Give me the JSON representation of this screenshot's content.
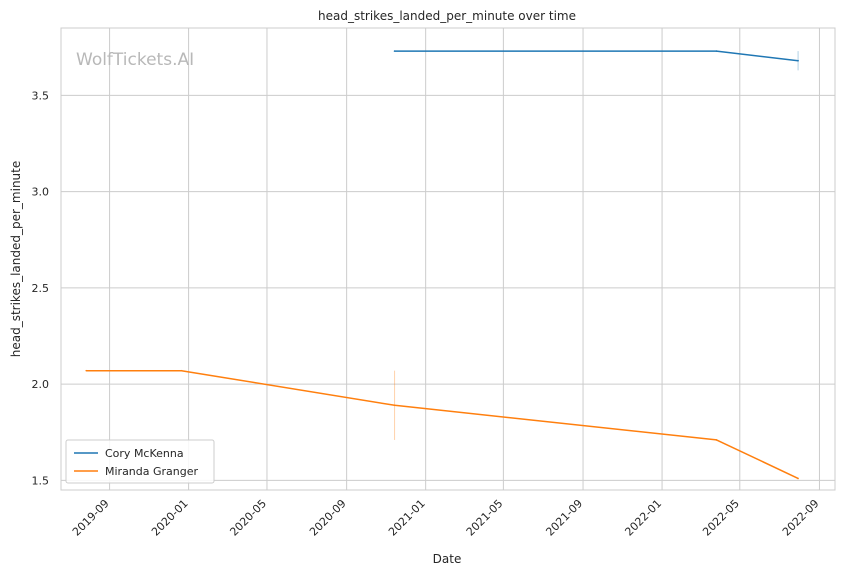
{
  "chart_data": {
    "type": "line",
    "title": "head_strikes_landed_per_minute over time",
    "xlabel": "Date",
    "ylabel": "head_strikes_landed_per_minute",
    "watermark": "WolfTickets.AI",
    "x_ticks": [
      "2019-09",
      "2020-01",
      "2020-05",
      "2020-09",
      "2021-01",
      "2021-05",
      "2021-09",
      "2022-01",
      "2022-05",
      "2022-09"
    ],
    "y_ticks": [
      "1.5",
      "2.0",
      "2.5",
      "3.0",
      "3.5"
    ],
    "ylim": [
      1.45,
      3.85
    ],
    "xlim": [
      "2019-06-18",
      "2022-09-25"
    ],
    "grid": true,
    "legend_position": "lower-left",
    "series": [
      {
        "name": "Cory McKenna",
        "color": "#1f77b4",
        "points": [
          {
            "x": "2020-11-14",
            "y": 3.73
          },
          {
            "x": "2022-03-26",
            "y": 3.73
          },
          {
            "x": "2022-07-30",
            "y": 3.68
          }
        ],
        "error_bars": [
          {
            "x": "2022-07-30",
            "low": 3.63,
            "high": 3.73
          }
        ]
      },
      {
        "name": "Miranda Granger",
        "color": "#ff7f0e",
        "points": [
          {
            "x": "2019-07-27",
            "y": 2.07
          },
          {
            "x": "2019-12-21",
            "y": 2.07
          },
          {
            "x": "2020-11-14",
            "y": 1.89
          },
          {
            "x": "2022-03-26",
            "y": 1.71
          },
          {
            "x": "2022-07-30",
            "y": 1.51
          }
        ],
        "error_bars": [
          {
            "x": "2020-11-14",
            "low": 1.71,
            "high": 2.07
          }
        ]
      }
    ]
  }
}
